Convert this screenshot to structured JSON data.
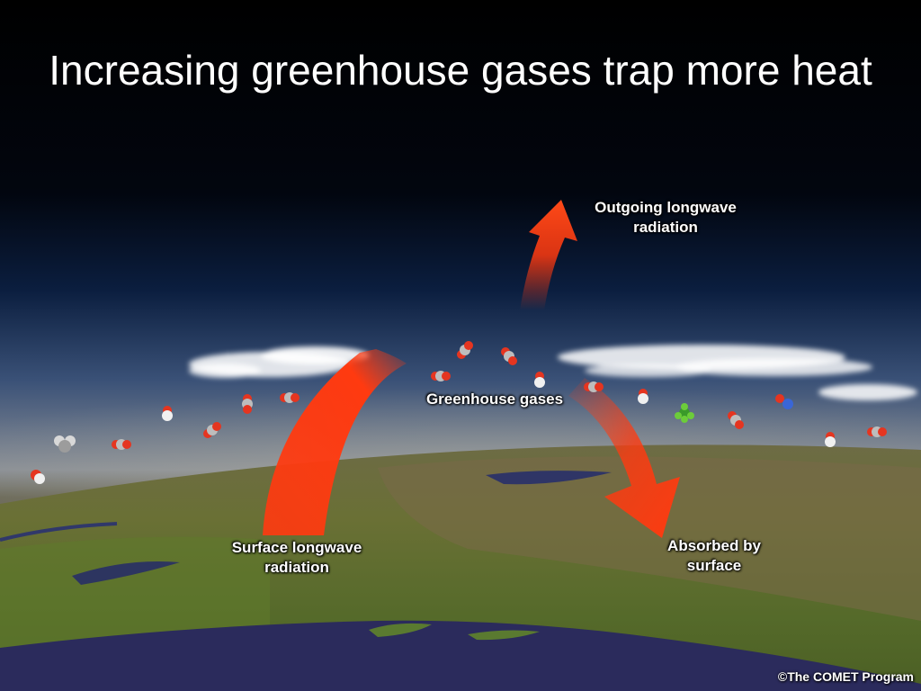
{
  "title": "Increasing greenhouse gases trap more heat",
  "labels": {
    "outgoing": [
      "Outgoing longwave",
      "radiation"
    ],
    "greenhouse": "Greenhouse gases",
    "surface": [
      "Surface longwave",
      "radiation"
    ],
    "absorbed": [
      "Absorbed by",
      "surface"
    ]
  },
  "credit": "©The COMET Program",
  "colors": {
    "arrow": "#ff3a10",
    "sky": "#0b1e3f",
    "land": "#5e6a2e",
    "water": "#2a2a5a",
    "cloud": "#ffffff"
  }
}
